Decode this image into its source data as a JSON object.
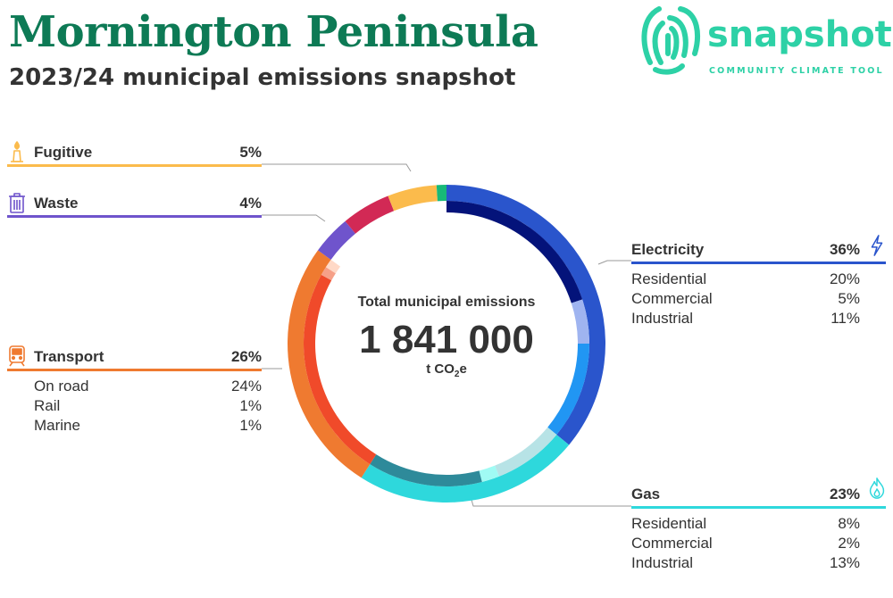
{
  "header": {
    "title": "Mornington Peninsula",
    "subtitle": "2023/24 municipal emissions snapshot"
  },
  "logo": {
    "word": "snapshot",
    "tagline": "COMMUNITY CLIMATE TOOL",
    "color": "#2dd1a6"
  },
  "colors": {
    "title": "#0d7a55"
  },
  "chart_data": {
    "type": "pie",
    "variant": "nested-donut",
    "total_caption": "Total municipal emissions",
    "total_value": "1 841 000",
    "total_unit_prefix": "t CO",
    "total_unit_sub": "2",
    "total_unit_suffix": "e",
    "sectors": [
      {
        "key": "electricity",
        "name": "Electricity",
        "pct_label": "36%",
        "value": 36,
        "color": "#2a55cc",
        "icon": "lightning-icon",
        "sub": [
          {
            "name": "Residential",
            "pct_label": "20%",
            "value": 20,
            "color": "#04137a"
          },
          {
            "name": "Commercial",
            "pct_label": "5%",
            "value": 5,
            "color": "#9fb4f0"
          },
          {
            "name": "Industrial",
            "pct_label": "11%",
            "value": 11,
            "color": "#2196f3"
          }
        ]
      },
      {
        "key": "gas",
        "name": "Gas",
        "pct_label": "23%",
        "value": 23,
        "color": "#2ed8dc",
        "icon": "flame-icon",
        "sub": [
          {
            "name": "Residential",
            "pct_label": "8%",
            "value": 8,
            "color": "#b7e3e6"
          },
          {
            "name": "Commercial",
            "pct_label": "2%",
            "value": 2,
            "color": "#a0fbf4"
          },
          {
            "name": "Industrial",
            "pct_label": "13%",
            "value": 13,
            "color": "#2e8a9a"
          }
        ]
      },
      {
        "key": "transport",
        "name": "Transport",
        "pct_label": "26%",
        "value": 26,
        "color": "#ef7a30",
        "icon": "train-icon",
        "sub": [
          {
            "name": "On road",
            "pct_label": "24%",
            "value": 24,
            "color": "#f04a2a"
          },
          {
            "name": "Rail",
            "pct_label": "1%",
            "value": 1,
            "color": "#f6a088"
          },
          {
            "name": "Marine",
            "pct_label": "1%",
            "value": 1,
            "color": "#ffd9c7"
          }
        ]
      },
      {
        "key": "waste",
        "name": "Waste",
        "pct_label": "4%",
        "value": 4,
        "color": "#6f54cc",
        "icon": "bin-icon",
        "sub": []
      },
      {
        "key": "agriculture",
        "name": "",
        "pct_label": "",
        "value": 5,
        "color": "#d22955",
        "sub": []
      },
      {
        "key": "fugitive",
        "name": "Fugitive",
        "pct_label": "5%",
        "value": 5,
        "color": "#fbbb4c",
        "icon": "gas-flare-icon",
        "sub": []
      },
      {
        "key": "other",
        "name": "",
        "pct_label": "",
        "value": 1,
        "color": "#17b978",
        "sub": []
      }
    ]
  }
}
